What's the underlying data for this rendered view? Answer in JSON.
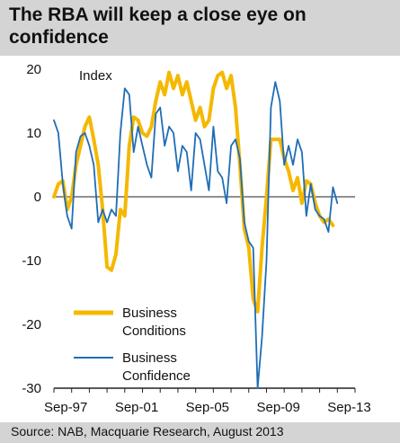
{
  "title": "The RBA will keep a close eye on confidence",
  "source": "Source: NAB, Macquarie Research, August  2013",
  "chart_data": {
    "type": "line",
    "title": "The RBA will keep a close eye on confidence",
    "ylabel": "Index",
    "xlabel": "",
    "ylim": [
      -30,
      20
    ],
    "yticks": [
      20,
      10,
      0,
      -10,
      -20,
      -30
    ],
    "xlim": [
      1997.0,
      2014.0
    ],
    "xticks": [
      {
        "x": 1997.67,
        "label": "Sep-97"
      },
      {
        "x": 2001.67,
        "label": "Sep-01"
      },
      {
        "x": 2005.67,
        "label": "Sep-05"
      },
      {
        "x": 2009.67,
        "label": "Sep-09"
      },
      {
        "x": 2013.67,
        "label": "Sep-13"
      }
    ],
    "legend": "bottom-left",
    "grid": false,
    "series": [
      {
        "name": "Business Conditions",
        "color": "#f5b800",
        "x": [
          1997.0,
          1997.25,
          1997.5,
          1997.75,
          1998.0,
          1998.25,
          1998.5,
          1998.75,
          1999.0,
          1999.25,
          1999.5,
          1999.75,
          2000.0,
          2000.25,
          2000.5,
          2000.75,
          2001.0,
          2001.25,
          2001.5,
          2001.75,
          2002.0,
          2002.25,
          2002.5,
          2002.75,
          2003.0,
          2003.25,
          2003.5,
          2003.75,
          2004.0,
          2004.25,
          2004.5,
          2004.75,
          2005.0,
          2005.25,
          2005.5,
          2005.75,
          2006.0,
          2006.25,
          2006.5,
          2006.75,
          2007.0,
          2007.25,
          2007.5,
          2007.75,
          2008.0,
          2008.25,
          2008.5,
          2008.75,
          2009.0,
          2009.25,
          2009.5,
          2009.75,
          2010.0,
          2010.25,
          2010.5,
          2010.75,
          2011.0,
          2011.25,
          2011.5,
          2011.75,
          2012.0,
          2012.25,
          2012.5,
          2012.75,
          2013.0,
          2013.25,
          2013.5
        ],
        "values": [
          0,
          2,
          2.5,
          -2,
          0,
          5,
          8,
          11,
          12.5,
          9,
          5,
          -2,
          -11,
          -11.5,
          -9,
          -2,
          -3,
          8,
          12.5,
          12,
          10,
          9.5,
          11,
          15,
          18,
          16,
          19.5,
          17,
          19,
          16,
          18,
          15,
          12,
          14,
          11,
          12,
          17,
          19,
          19.5,
          17,
          19,
          14,
          5,
          -5,
          -8,
          -16,
          -18,
          -8,
          0,
          9,
          9,
          9,
          6,
          4,
          1,
          3,
          -1,
          2.5,
          2,
          -1,
          -3,
          -4,
          -3.5,
          -4.5,
          null,
          null,
          null
        ]
      },
      {
        "name": "Business Confidence",
        "color": "#1f6db5",
        "x": [
          1997.0,
          1997.25,
          1997.5,
          1997.75,
          1998.0,
          1998.25,
          1998.5,
          1998.75,
          1999.0,
          1999.25,
          1999.5,
          1999.75,
          2000.0,
          2000.25,
          2000.5,
          2000.75,
          2001.0,
          2001.25,
          2001.5,
          2001.75,
          2002.0,
          2002.25,
          2002.5,
          2002.75,
          2003.0,
          2003.25,
          2003.5,
          2003.75,
          2004.0,
          2004.25,
          2004.5,
          2004.75,
          2005.0,
          2005.25,
          2005.5,
          2005.75,
          2006.0,
          2006.25,
          2006.5,
          2006.75,
          2007.0,
          2007.25,
          2007.5,
          2007.75,
          2008.0,
          2008.25,
          2008.5,
          2008.75,
          2009.0,
          2009.25,
          2009.5,
          2009.75,
          2010.0,
          2010.25,
          2010.5,
          2010.75,
          2011.0,
          2011.25,
          2011.5,
          2011.75,
          2012.0,
          2012.25,
          2012.5,
          2012.75,
          2013.0,
          2013.25,
          2013.5
        ],
        "values": [
          12,
          10,
          2,
          -3,
          -5,
          7,
          9.5,
          10,
          8,
          5,
          -4,
          -2,
          -4,
          -2,
          -3,
          10,
          17,
          16,
          7,
          11,
          8,
          5,
          3,
          13,
          14,
          8,
          11,
          10,
          4,
          8,
          7,
          1,
          10,
          9,
          5,
          1,
          11,
          4,
          3,
          -1,
          8,
          9,
          6,
          -4,
          -7,
          -8,
          -30,
          -22,
          -10,
          14,
          18,
          15,
          5,
          8,
          5,
          9,
          7,
          -3,
          2,
          -2,
          -3,
          -3.5,
          -5.5,
          1.5,
          -1,
          null,
          null
        ]
      }
    ]
  }
}
